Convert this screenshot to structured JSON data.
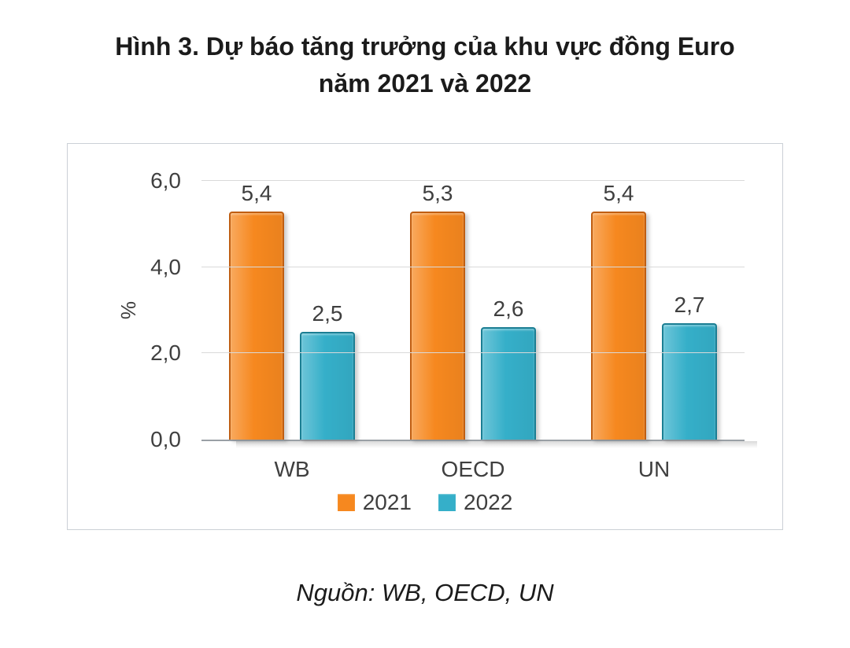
{
  "title": {
    "line1": "Hình 3. Dự báo tăng trưởng của khu vực đồng Euro",
    "line2": "năm 2021 và 2022"
  },
  "chart_data": {
    "type": "bar",
    "title": "Hình 3. Dự báo tăng trưởng của khu vực đồng Euro năm 2021 và 2022",
    "categories": [
      "WB",
      "OECD",
      "UN"
    ],
    "series": [
      {
        "name": "2021",
        "values": [
          5.4,
          5.3,
          5.4
        ],
        "labels": [
          "5,4",
          "5,3",
          "5,4"
        ],
        "color": "#F6881F",
        "border_color": "#C05E11"
      },
      {
        "name": "2022",
        "values": [
          2.5,
          2.6,
          2.7
        ],
        "labels": [
          "2,5",
          "2,6",
          "2,7"
        ],
        "color": "#35AFC9",
        "border_color": "#1B7E93"
      }
    ],
    "xlabel": "",
    "ylabel": "%",
    "ylim": [
      0,
      6
    ],
    "yticks": [
      {
        "value": 0,
        "label": "0,0"
      },
      {
        "value": 2,
        "label": "2,0"
      },
      {
        "value": 4,
        "label": "4,0"
      },
      {
        "value": 6,
        "label": "6,0"
      }
    ],
    "grid": true,
    "legend_position": "bottom",
    "decimal_separator": ","
  },
  "source": {
    "text": "Nguồn: WB, OECD, UN"
  }
}
